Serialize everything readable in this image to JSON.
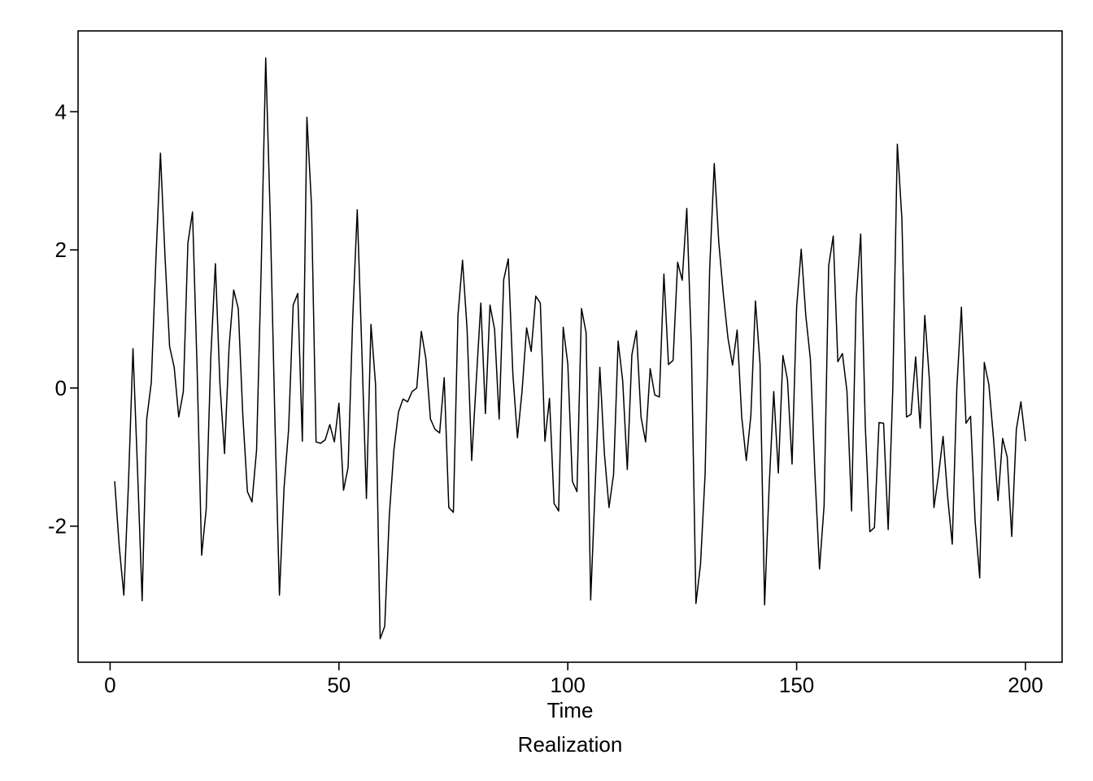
{
  "chart_data": {
    "type": "line",
    "title": "",
    "xlabel": "Time",
    "ylabel": "",
    "caption": "Realization",
    "xlim": [
      -7,
      208
    ],
    "ylim": [
      -3.97,
      5.17
    ],
    "x_ticks": [
      0,
      50,
      100,
      150,
      200
    ],
    "x_tick_labels": [
      "0",
      "50",
      "100",
      "150",
      "200"
    ],
    "y_ticks": [
      -2,
      0,
      2,
      4
    ],
    "y_tick_labels": [
      "-2",
      "0",
      "2",
      "4"
    ],
    "grid": false,
    "legend": "none",
    "line_color": "#000000",
    "series": [
      {
        "x": [
          1,
          2,
          3,
          4,
          5,
          6,
          7,
          8,
          9,
          10,
          11,
          12,
          13,
          14,
          15,
          16,
          17,
          18,
          19,
          20,
          21,
          22,
          23,
          24,
          25,
          26,
          27,
          28,
          29,
          30,
          31,
          32,
          33,
          34,
          35,
          36,
          37,
          38,
          39,
          40,
          41,
          42,
          43,
          44,
          45,
          46,
          47,
          48,
          49,
          50,
          51,
          52,
          53,
          54,
          55,
          56,
          57,
          58,
          59,
          60,
          61,
          62,
          63,
          64,
          65,
          66,
          67,
          68,
          69,
          70,
          71,
          72,
          73,
          74,
          75,
          76,
          77,
          78,
          79,
          80,
          81,
          82,
          83,
          84,
          85,
          86,
          87,
          88,
          89,
          90,
          91,
          92,
          93,
          94,
          95,
          96,
          97,
          98,
          99,
          100,
          101,
          102,
          103,
          104,
          105,
          106,
          107,
          108,
          109,
          110,
          111,
          112,
          113,
          114,
          115,
          116,
          117,
          118,
          119,
          120,
          121,
          122,
          123,
          124,
          125,
          126,
          127,
          128,
          129,
          130,
          131,
          132,
          133,
          134,
          135,
          136,
          137,
          138,
          139,
          140,
          141,
          142,
          143,
          144,
          145,
          146,
          147,
          148,
          149,
          150,
          151,
          152,
          153,
          154,
          155,
          156,
          157,
          158,
          159,
          160,
          161,
          162,
          163,
          164,
          165,
          166,
          167,
          168,
          169,
          170,
          171,
          172,
          173,
          174,
          175,
          176,
          177,
          178,
          179,
          180,
          181,
          182,
          183,
          184,
          185,
          186,
          187,
          188,
          189,
          190,
          191,
          192,
          193,
          194,
          195,
          196,
          197,
          198,
          199,
          200
        ],
        "values": [
          -1.35,
          -2.3,
          -3.0,
          -1.4,
          0.57,
          -1.2,
          -3.08,
          -0.45,
          0.08,
          1.85,
          3.4,
          1.9,
          0.6,
          0.3,
          -0.42,
          -0.05,
          2.1,
          2.55,
          0.3,
          -2.42,
          -1.75,
          0.45,
          1.8,
          0.05,
          -0.95,
          0.6,
          1.42,
          1.15,
          -0.4,
          -1.5,
          -1.65,
          -0.9,
          1.7,
          4.78,
          2.45,
          -0.45,
          -3.0,
          -1.45,
          -0.6,
          1.2,
          1.37,
          -0.77,
          3.92,
          2.65,
          -0.78,
          -0.8,
          -0.75,
          -0.53,
          -0.78,
          -0.22,
          -1.48,
          -1.15,
          1.0,
          2.58,
          0.55,
          -1.6,
          0.92,
          0.05,
          -3.63,
          -3.45,
          -1.85,
          -0.9,
          -0.35,
          -0.16,
          -0.2,
          -0.05,
          0.0,
          0.82,
          0.42,
          -0.45,
          -0.6,
          -0.65,
          0.15,
          -1.73,
          -1.8,
          1.05,
          1.85,
          0.85,
          -1.05,
          0.1,
          1.23,
          -0.37,
          1.2,
          0.85,
          -0.45,
          1.57,
          1.87,
          0.2,
          -0.72,
          -0.05,
          0.87,
          0.53,
          1.33,
          1.23,
          -0.77,
          -0.15,
          -1.67,
          -1.78,
          0.88,
          0.35,
          -1.35,
          -1.5,
          1.15,
          0.8,
          -3.07,
          -1.4,
          0.3,
          -0.95,
          -1.73,
          -1.25,
          0.68,
          0.1,
          -1.18,
          0.48,
          0.83,
          -0.42,
          -0.78,
          0.28,
          -0.1,
          -0.13,
          1.65,
          0.34,
          0.4,
          1.82,
          1.56,
          2.6,
          0.6,
          -3.12,
          -2.55,
          -1.25,
          1.72,
          3.25,
          2.1,
          1.35,
          0.72,
          0.33,
          0.84,
          -0.42,
          -1.05,
          -0.4,
          1.26,
          0.35,
          -3.14,
          -1.42,
          -0.05,
          -1.23,
          0.47,
          0.12,
          -1.1,
          1.17,
          2.01,
          1.05,
          0.42,
          -1.25,
          -2.62,
          -1.7,
          1.77,
          2.2,
          0.38,
          0.5,
          -0.05,
          -1.78,
          1.27,
          2.23,
          -0.55,
          -2.08,
          -2.02,
          -0.5,
          -0.51,
          -2.05,
          -0.03,
          3.53,
          2.45,
          -0.42,
          -0.38,
          0.45,
          -0.58,
          1.05,
          0.13,
          -1.73,
          -1.26,
          -0.7,
          -1.58,
          -2.26,
          0.0,
          1.17,
          -0.51,
          -0.41,
          -1.93,
          -2.75,
          0.37,
          0.05,
          -0.72,
          -1.63,
          -0.73,
          -1.0,
          -2.15,
          -0.6,
          -0.2,
          -0.77
        ]
      }
    ]
  }
}
